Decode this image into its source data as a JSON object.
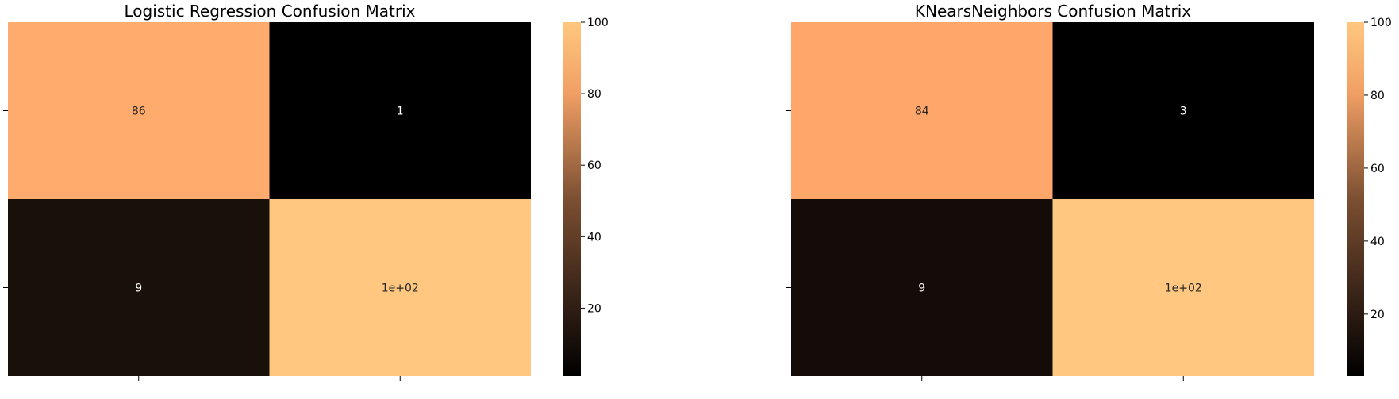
{
  "chart_data": [
    {
      "type": "heatmap",
      "title": "Logistic Regression  Confusion Matrix",
      "matrix": [
        [
          86,
          1
        ],
        [
          9,
          100
        ]
      ],
      "annotations": [
        [
          "86",
          "1"
        ],
        [
          "9",
          "1e+02"
        ]
      ],
      "colormap": "copper",
      "colorbar": {
        "range": [
          1,
          100
        ],
        "ticks": [
          20,
          40,
          60,
          80,
          100
        ]
      }
    },
    {
      "type": "heatmap",
      "title": "KNearsNeighbors  Confusion Matrix",
      "matrix": [
        [
          84,
          3
        ],
        [
          9,
          100
        ]
      ],
      "annotations": [
        [
          "84",
          "3"
        ],
        [
          "9",
          "1e+02"
        ]
      ],
      "colormap": "copper",
      "colorbar": {
        "range": [
          3,
          100
        ],
        "ticks": [
          20,
          40,
          60,
          80,
          100
        ]
      }
    }
  ]
}
